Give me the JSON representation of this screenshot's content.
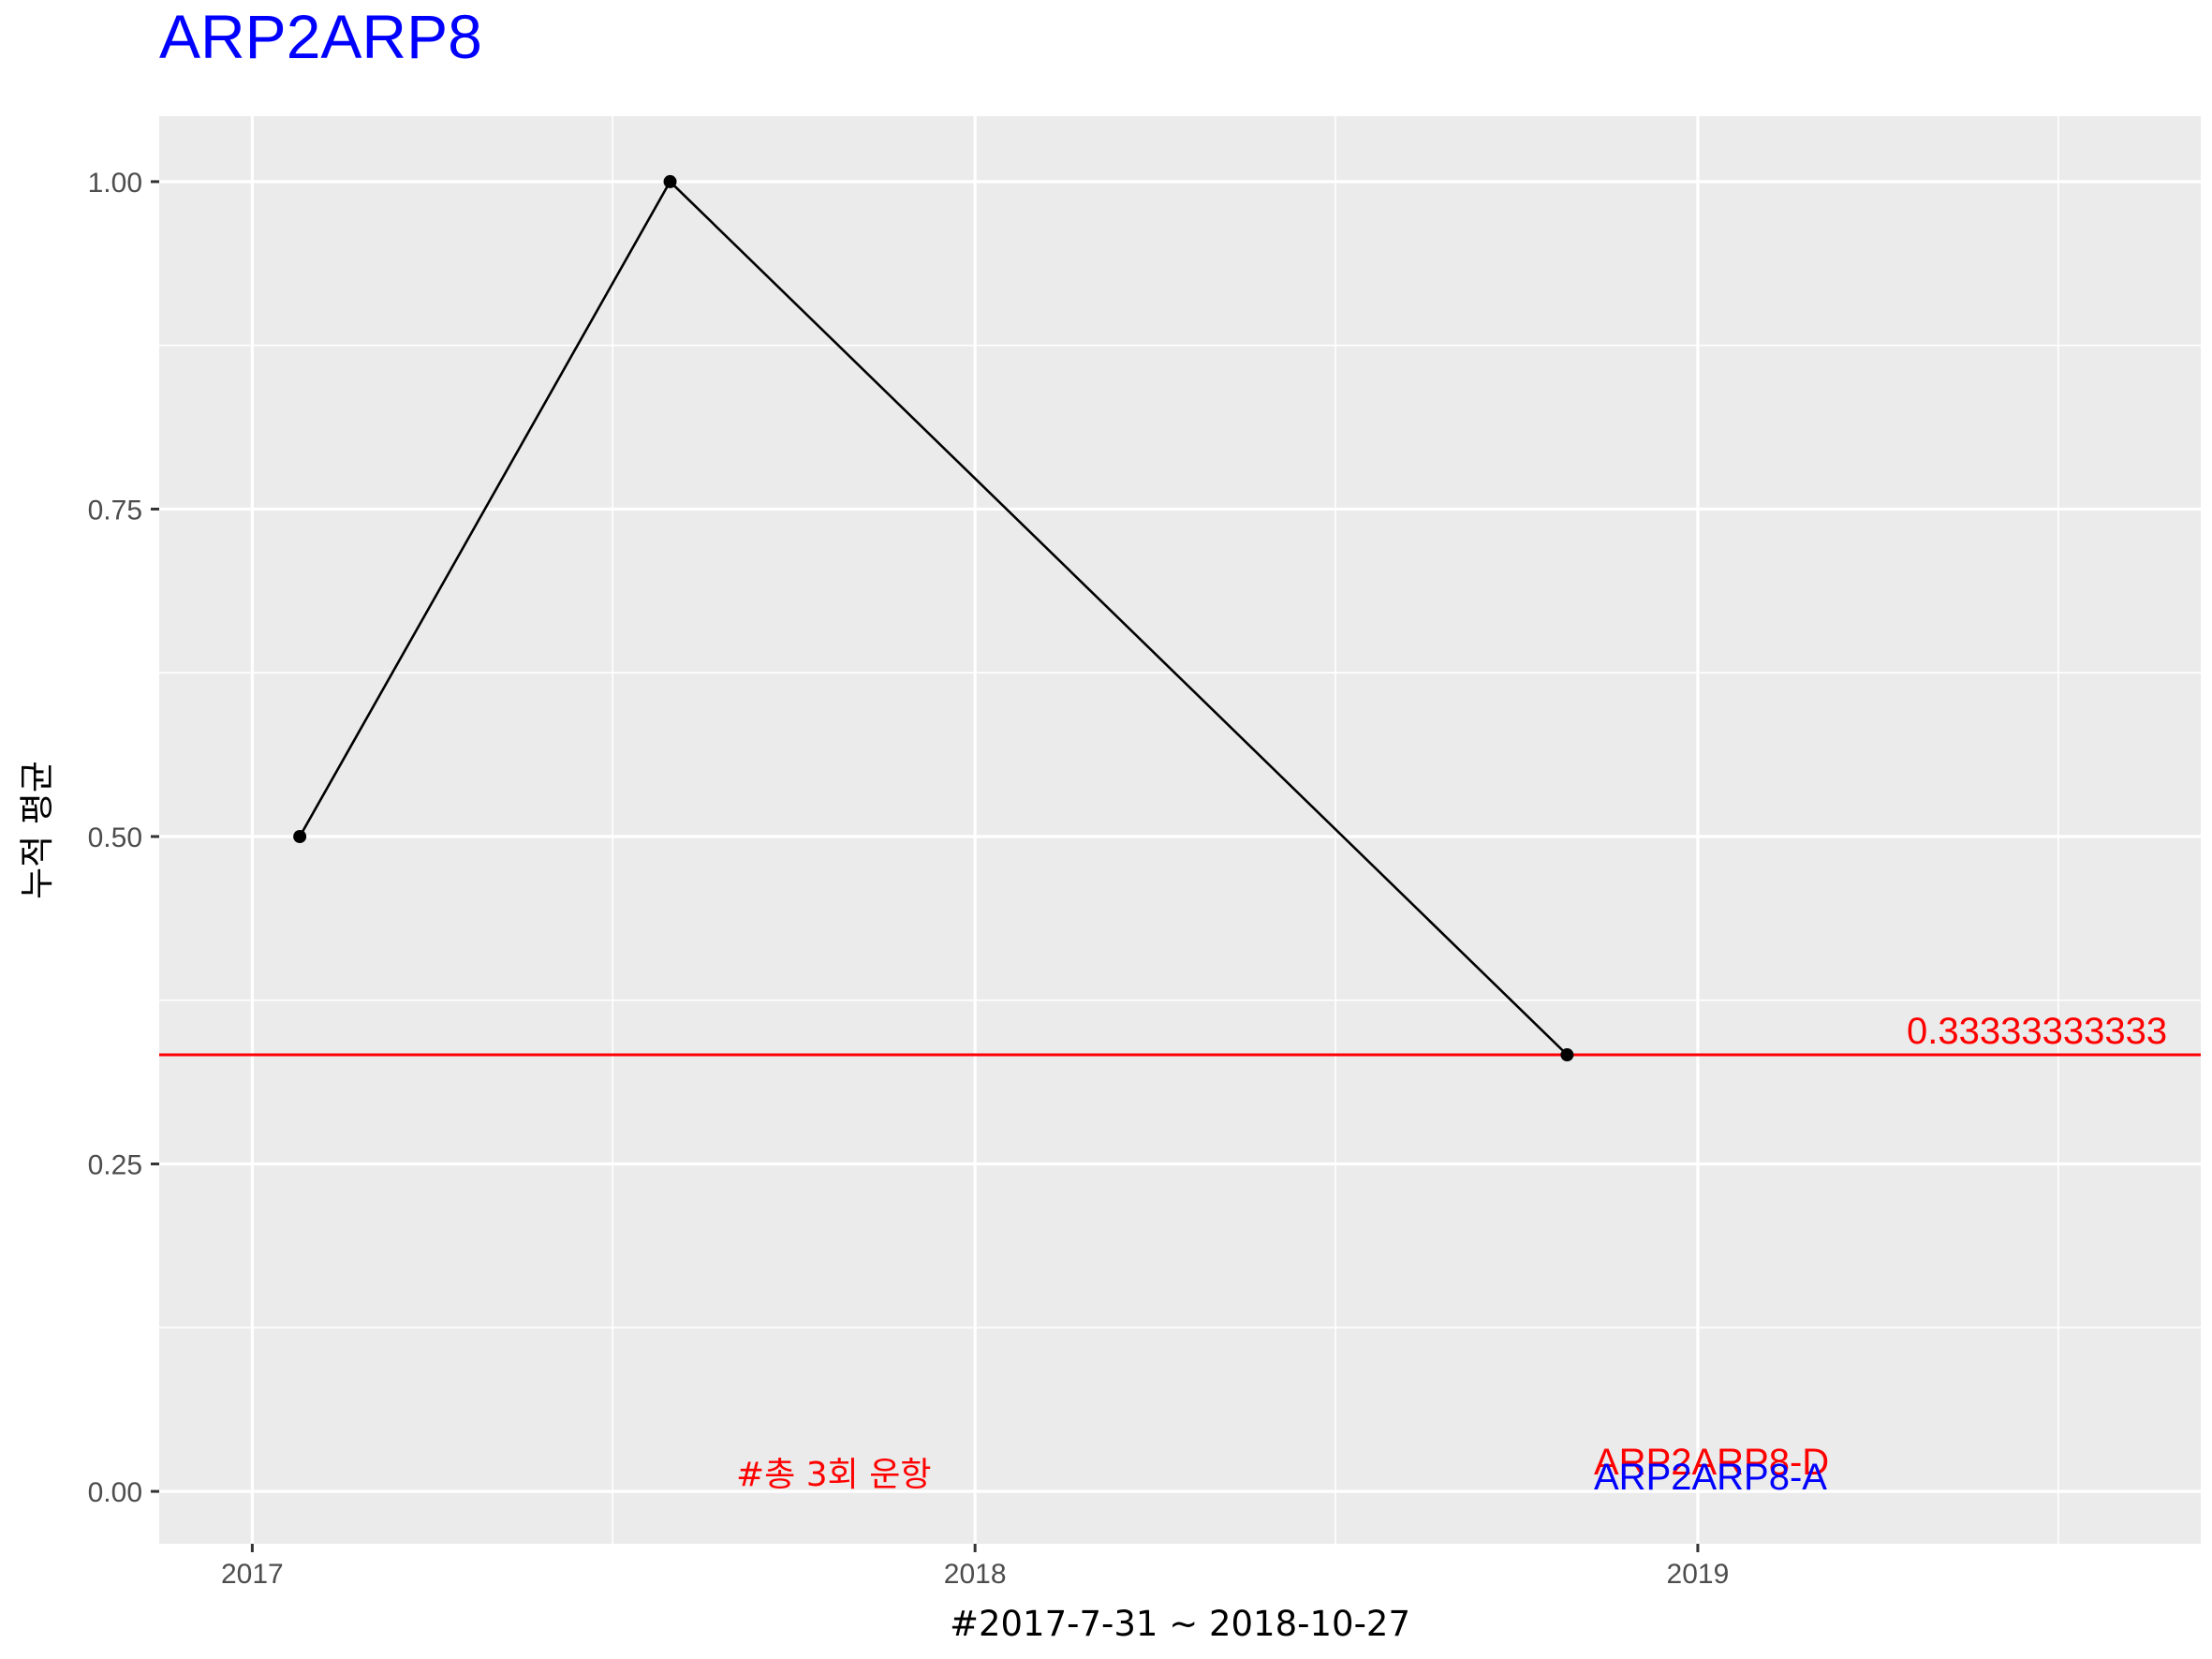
{
  "chart_data": {
    "type": "line",
    "title": "ARP2ARP8",
    "xlabel": "#2017-7-31 ~ 2018-10-27",
    "ylabel": "누적 평균",
    "x_ticks": [
      "2017",
      "2018",
      "2019"
    ],
    "y_ticks": [
      "0.00",
      "0.25",
      "0.50",
      "0.75",
      "1.00"
    ],
    "xlim": [
      "2016-11-15",
      "2019-09-12"
    ],
    "ylim": [
      -0.04,
      1.05
    ],
    "grid": true,
    "series": [
      {
        "x": [
          "2017-01-25",
          "2017-07-31",
          "2018-10-27"
        ],
        "y": [
          0.5,
          1.0,
          0.3333333
        ]
      }
    ],
    "hline": {
      "y": 0.3333333,
      "label": "0.33333333333"
    },
    "annotations": {
      "count_label": "#총 3회 운항",
      "label_d": "ARP2ARP8-D",
      "label_a": "ARP2ARP8-A"
    }
  },
  "colors": {
    "title": "#0000ff",
    "panel_bg": "#ebebeb",
    "grid": "#ffffff",
    "line": "#000000",
    "hline": "#ff0000",
    "label_d": "#ff0000",
    "label_a": "#0000ff",
    "count_label": "#ff0000"
  }
}
